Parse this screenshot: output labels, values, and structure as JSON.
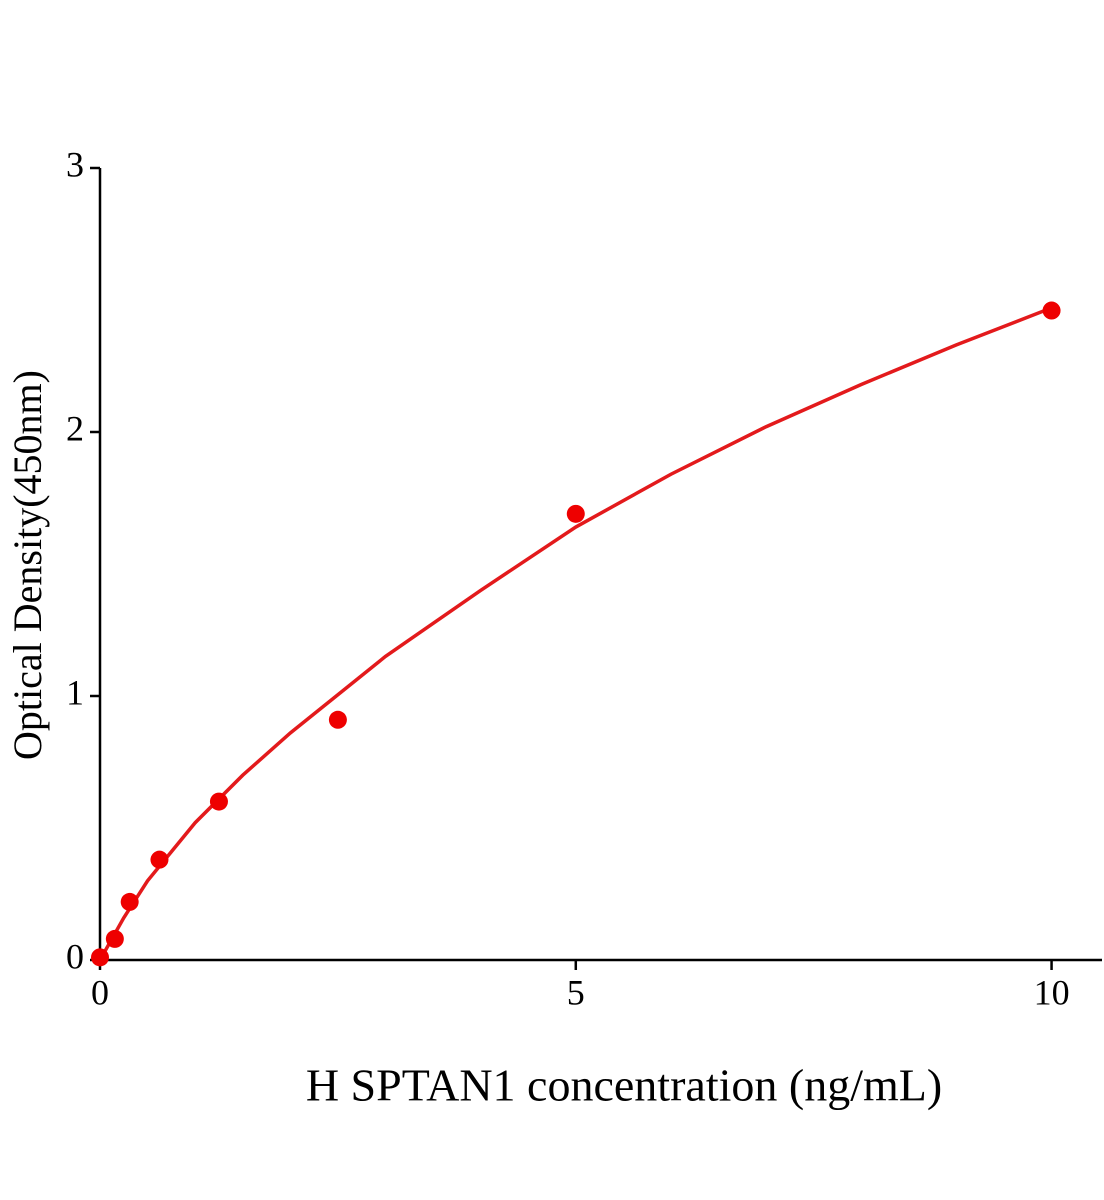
{
  "chart_data": {
    "type": "scatter",
    "x_label": "H SPTAN1 concentration (ng/mL)",
    "y_label": "Optical Density(450nm)",
    "xlim": [
      0,
      10.53
    ],
    "ylim": [
      0,
      3
    ],
    "xticks": [
      0,
      5,
      10
    ],
    "yticks": [
      0,
      1,
      2,
      3
    ],
    "series": [
      {
        "type": "scatter",
        "color": "#ee0000",
        "x": [
          0,
          0.156,
          0.312,
          0.625,
          1.25,
          2.5,
          5,
          10
        ],
        "values": [
          0.01,
          0.08,
          0.22,
          0.38,
          0.6,
          0.91,
          1.69,
          2.46
        ]
      },
      {
        "type": "line",
        "color": "#e31a1c",
        "x": [
          0,
          0.25,
          0.5,
          1,
          1.5,
          2,
          3,
          4,
          5,
          6,
          7,
          8,
          9,
          10
        ],
        "values": [
          0,
          0.16,
          0.3,
          0.52,
          0.7,
          0.86,
          1.15,
          1.4,
          1.64,
          1.84,
          2.02,
          2.18,
          2.33,
          2.47
        ]
      }
    ]
  }
}
